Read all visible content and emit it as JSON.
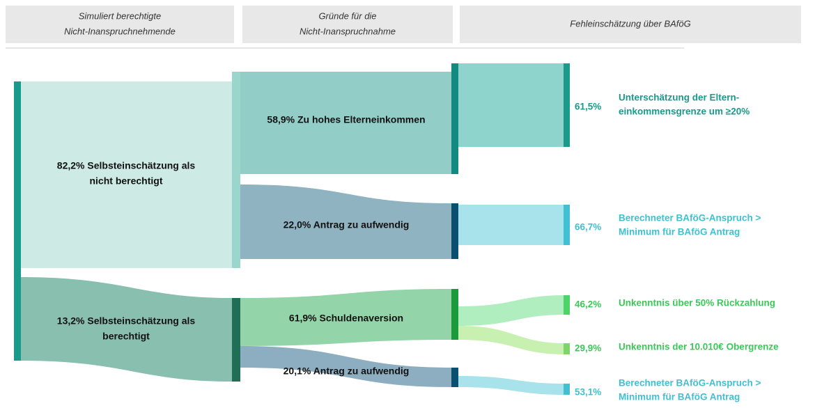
{
  "headers": [
    [
      "Simuliert berechtigte",
      "Nicht-Inanspruchnehmende"
    ],
    [
      "Gründe für die",
      "Nicht-Inanspruchnahme"
    ],
    [
      "Fehleinschätzung über BAföG"
    ]
  ],
  "nodes": [
    [
      "82,2% Selbsteinschätzung als",
      "nicht berechtigt"
    ],
    [
      "13,2% Selbsteinschätzung als",
      "berechtigt"
    ],
    [
      "58,9% Zu hohes Elterneinkommen"
    ],
    [
      "22,0% Antrag zu aufwendig"
    ],
    [
      "61,9% Schuldenaversion"
    ],
    [
      "20,1% Antrag zu aufwendig"
    ]
  ],
  "outcomes": [
    {
      "percent": "61,5%",
      "text": [
        "Unterschätzung der Eltern-",
        "einkommensgrenze um  ≥20%"
      ]
    },
    {
      "percent": "66,7%",
      "text": [
        "Berechneter BAföG-Anspruch >",
        "Minimum für BAföG Antrag"
      ]
    },
    {
      "percent": "46,2%",
      "text": [
        "Unkenntnis über 50% Rückzahlung"
      ]
    },
    {
      "percent": "29,9%",
      "text": [
        "Unkenntnis der 10.010€ Obergrenze"
      ]
    },
    {
      "percent": "53,1%",
      "text": [
        "Berechneter BAföG-Anspruch >",
        "Minimum für BAföG Antrag"
      ]
    }
  ]
}
